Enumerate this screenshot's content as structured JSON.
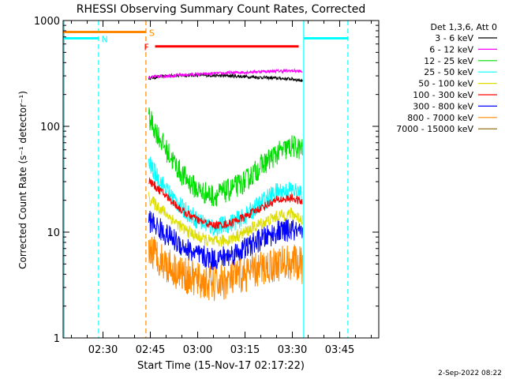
{
  "chart_data": {
    "type": "line",
    "title": "RHESSI Observing Summary Count Rates, Corrected",
    "xlabel": "Start Time (15-Nov-17 02:17:22)",
    "ylabel": "Corrected Count Rate (s⁻¹ detector⁻¹)",
    "yscale": "log",
    "ylim": [
      1,
      1000
    ],
    "xlim_minutes": [
      137.37,
      237.37
    ],
    "x_ticks": [
      {
        "label": "02:30",
        "minute": 150
      },
      {
        "label": "02:45",
        "minute": 165
      },
      {
        "label": "03:00",
        "minute": 180
      },
      {
        "label": "03:15",
        "minute": 195
      },
      {
        "label": "03:30",
        "minute": 210
      },
      {
        "label": "03:45",
        "minute": 225
      }
    ],
    "y_ticks": [
      {
        "label": "1",
        "value": 1
      },
      {
        "label": "10",
        "value": 10
      },
      {
        "label": "100",
        "value": 100
      },
      {
        "label": "1000",
        "value": 1000
      }
    ],
    "legend_title": "Det 1,3,6, Att 0",
    "legend_position": "top-right-outside",
    "series": [
      {
        "name": "3 - 6 keV",
        "color": "#000000",
        "x": [
          164.5,
          170,
          180,
          190,
          200,
          210,
          213.3
        ],
        "y": [
          285,
          300,
          305,
          300,
          290,
          280,
          270
        ]
      },
      {
        "name": "6 - 12 keV",
        "color": "#ff00ff",
        "x": [
          164.5,
          170,
          180,
          190,
          200,
          210,
          213.3
        ],
        "y": [
          290,
          300,
          310,
          320,
          330,
          335,
          330
        ]
      },
      {
        "name": "12 - 25 keV",
        "color": "#00dd00",
        "x": [
          164.5,
          166,
          170,
          175,
          180,
          185,
          190,
          195,
          200,
          205,
          210,
          213.3
        ],
        "y": [
          120,
          100,
          60,
          35,
          25,
          22,
          25,
          30,
          42,
          55,
          65,
          60
        ]
      },
      {
        "name": "25 - 50 keV",
        "color": "#00ffff",
        "x": [
          164.5,
          166,
          170,
          175,
          180,
          185,
          190,
          195,
          200,
          205,
          210,
          213.3
        ],
        "y": [
          45,
          38,
          25,
          17,
          13,
          11,
          12,
          14,
          19,
          24,
          25,
          22
        ]
      },
      {
        "name": "50 - 100 keV",
        "color": "#dddd00",
        "x": [
          164.5,
          166,
          170,
          175,
          180,
          185,
          190,
          195,
          200,
          205,
          210,
          213.3
        ],
        "y": [
          21,
          19,
          15,
          11,
          9,
          8,
          8.5,
          10,
          12,
          14,
          15,
          13
        ]
      },
      {
        "name": "100 - 300 keV",
        "color": "#ff0000",
        "x": [
          164.5,
          166,
          170,
          175,
          180,
          185,
          190,
          195,
          200,
          205,
          210,
          213.3
        ],
        "y": [
          31,
          28,
          22,
          16,
          13,
          11.5,
          12,
          14,
          17,
          20,
          21,
          19
        ]
      },
      {
        "name": "300 - 800 keV",
        "color": "#0000ff",
        "x": [
          164.5,
          166,
          170,
          175,
          180,
          185,
          190,
          195,
          200,
          205,
          210,
          213.3
        ],
        "y": [
          13,
          12,
          9.5,
          7.5,
          6,
          5.5,
          6,
          7,
          8.5,
          10,
          10.5,
          9
        ]
      },
      {
        "name": "800 - 7000 keV",
        "color": "#ff8800",
        "x": [
          164.5,
          166,
          170,
          175,
          180,
          185,
          190,
          195,
          200,
          205,
          210,
          213.3
        ],
        "y": [
          7,
          6.5,
          5,
          4,
          3.5,
          3.2,
          3.5,
          4,
          4.5,
          5,
          5.2,
          4.8
        ]
      },
      {
        "name": "7000 - 15000 keV",
        "color": "#886600",
        "x": [],
        "y": []
      }
    ],
    "flag_lines": [
      {
        "name": "S",
        "label": "S",
        "color": "#ff8800",
        "y_level": 780,
        "x_start": 137.37,
        "x_end": 163.6
      },
      {
        "name": "N",
        "label": "N",
        "color": "#00ffff",
        "y_level": 680,
        "x_start": 137.37,
        "x_end": 148.5
      },
      {
        "name": "N2",
        "label": "",
        "color": "#00ffff",
        "y_level": 680,
        "x_start": 213.6,
        "x_end": 227.5
      },
      {
        "name": "F",
        "label": "F",
        "color": "#ff0000",
        "y_level": 570,
        "x_start": 166.5,
        "x_end": 212.0
      }
    ],
    "vertical_lines": [
      {
        "minute": 137.7,
        "color": "#00ffff",
        "style": "solid"
      },
      {
        "minute": 148.6,
        "color": "#00ffff",
        "style": "dashed"
      },
      {
        "minute": 163.6,
        "color": "#ff8800",
        "style": "dashed"
      },
      {
        "minute": 213.6,
        "color": "#00ffff",
        "style": "solid"
      },
      {
        "minute": 227.6,
        "color": "#00ffff",
        "style": "dashed"
      }
    ]
  },
  "footer_date": "2-Sep-2022 08:22"
}
